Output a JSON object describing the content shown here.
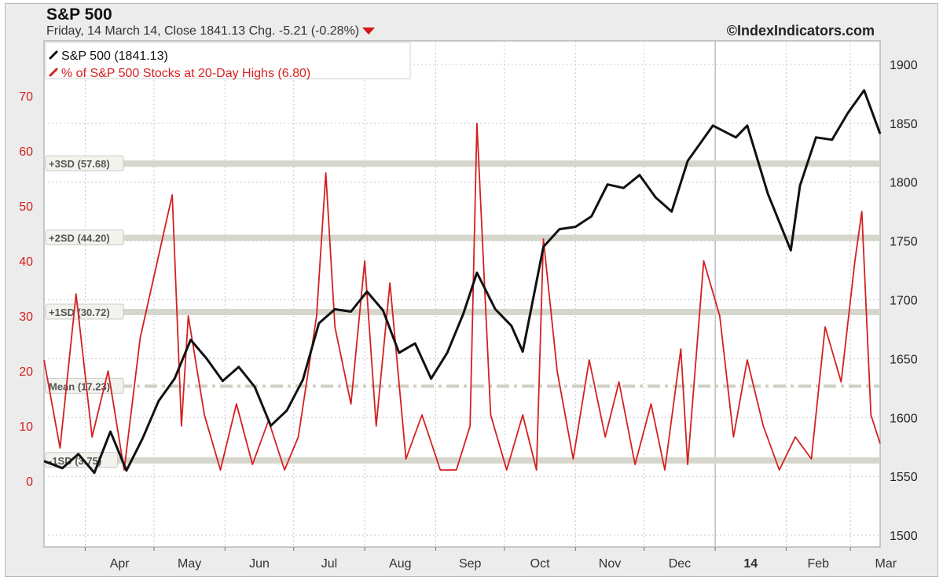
{
  "header": {
    "title": "S&P 500",
    "subtitle": "Friday, 14 March 14, Close 1841.13 Chg. -5.21 (-0.28%)",
    "brand": "©IndexIndicators.com",
    "down_arrow_icon": "down-triangle-icon"
  },
  "legend": {
    "items": [
      {
        "label": "S&P 500 (1841.13)",
        "color": "#111111",
        "icon": "line-swatch-icon"
      },
      {
        "label": "% of S&P 500 Stocks at 20-Day Highs (6.80)",
        "color": "#d42020",
        "icon": "line-swatch-icon"
      }
    ]
  },
  "chart_data": {
    "type": "line",
    "x_axis": {
      "tick_labels": [
        "Apr",
        "May",
        "Jun",
        "Jul",
        "Aug",
        "Sep",
        "Oct",
        "Nov",
        "Dec",
        "14",
        "Feb",
        "Mar"
      ],
      "range": [
        "2013-03-14",
        "2014-03-14"
      ]
    },
    "left_axis": {
      "ticks": [
        "0",
        "10",
        "20",
        "30",
        "40",
        "50",
        "60",
        "70"
      ],
      "range": [
        -12,
        80
      ],
      "color": "#d42020"
    },
    "right_axis": {
      "ticks": [
        "1500",
        "1550",
        "1600",
        "1650",
        "1700",
        "1750",
        "1800",
        "1850",
        "1900"
      ],
      "range": [
        1490,
        1920
      ],
      "color": "#222222"
    },
    "reference_lines": [
      {
        "label": "+3SD (57.68)",
        "value": 57.68,
        "style": "solid"
      },
      {
        "label": "+2SD (44.20)",
        "value": 44.2,
        "style": "solid"
      },
      {
        "label": "+1SD (30.72)",
        "value": 30.72,
        "style": "solid"
      },
      {
        "label": "Mean (17.23)",
        "value": 17.23,
        "style": "dashdot"
      },
      {
        "label": "-1SD (3.75)",
        "value": 3.75,
        "style": "solid"
      }
    ],
    "grid": true,
    "legend_position": "top-left",
    "series": [
      {
        "name": "S&P 500 (1841.13)",
        "axis": "right",
        "color": "#111111",
        "x": [
          "2013-03-14",
          "2013-03-22",
          "2013-03-29",
          "2013-04-05",
          "2013-04-12",
          "2013-04-19",
          "2013-04-26",
          "2013-05-03",
          "2013-05-10",
          "2013-05-17",
          "2013-05-24",
          "2013-05-31",
          "2013-06-07",
          "2013-06-14",
          "2013-06-21",
          "2013-06-28",
          "2013-07-05",
          "2013-07-12",
          "2013-07-19",
          "2013-07-26",
          "2013-08-02",
          "2013-08-09",
          "2013-08-16",
          "2013-08-23",
          "2013-08-30",
          "2013-09-06",
          "2013-09-13",
          "2013-09-19",
          "2013-09-27",
          "2013-10-04",
          "2013-10-09",
          "2013-10-18",
          "2013-10-25",
          "2013-11-01",
          "2013-11-08",
          "2013-11-15",
          "2013-11-22",
          "2013-11-29",
          "2013-12-06",
          "2013-12-13",
          "2013-12-20",
          "2013-12-31",
          "2014-01-10",
          "2014-01-15",
          "2014-01-24",
          "2014-02-03",
          "2014-02-07",
          "2014-02-14",
          "2014-02-21",
          "2014-02-28",
          "2014-03-07",
          "2014-03-14"
        ],
        "y": [
          1563,
          1557,
          1569,
          1553,
          1588,
          1555,
          1582,
          1614,
          1633,
          1666,
          1650,
          1631,
          1643,
          1626,
          1593,
          1606,
          1632,
          1680,
          1692,
          1690,
          1707,
          1691,
          1655,
          1663,
          1633,
          1655,
          1688,
          1723,
          1692,
          1678,
          1656,
          1745,
          1760,
          1762,
          1771,
          1798,
          1795,
          1806,
          1787,
          1775,
          1818,
          1848,
          1838,
          1848,
          1790,
          1742,
          1797,
          1838,
          1836,
          1859,
          1878,
          1841
        ]
      },
      {
        "name": "% of S&P 500 Stocks at 20-Day Highs (6.80)",
        "axis": "left",
        "color": "#d42020",
        "x": [
          "2013-03-14",
          "2013-03-21",
          "2013-03-28",
          "2013-04-04",
          "2013-04-11",
          "2013-04-18",
          "2013-04-25",
          "2013-05-02",
          "2013-05-09",
          "2013-05-13",
          "2013-05-16",
          "2013-05-23",
          "2013-05-30",
          "2013-06-06",
          "2013-06-13",
          "2013-06-20",
          "2013-06-27",
          "2013-07-03",
          "2013-07-11",
          "2013-07-15",
          "2013-07-19",
          "2013-07-26",
          "2013-08-01",
          "2013-08-06",
          "2013-08-12",
          "2013-08-19",
          "2013-08-26",
          "2013-09-03",
          "2013-09-10",
          "2013-09-16",
          "2013-09-19",
          "2013-09-25",
          "2013-10-02",
          "2013-10-09",
          "2013-10-15",
          "2013-10-18",
          "2013-10-24",
          "2013-10-31",
          "2013-11-07",
          "2013-11-14",
          "2013-11-20",
          "2013-11-27",
          "2013-12-04",
          "2013-12-10",
          "2013-12-17",
          "2013-12-20",
          "2013-12-27",
          "2014-01-03",
          "2014-01-09",
          "2014-01-15",
          "2014-01-22",
          "2014-01-29",
          "2014-02-05",
          "2014-02-12",
          "2014-02-18",
          "2014-02-25",
          "2014-03-03",
          "2014-03-06",
          "2014-03-10",
          "2014-03-14"
        ],
        "y": [
          22,
          6,
          34,
          8,
          20,
          2,
          26,
          39,
          52,
          10,
          30,
          12,
          2,
          14,
          3,
          11,
          2,
          8,
          30,
          56,
          28,
          14,
          40,
          10,
          36,
          4,
          12,
          2,
          2,
          10,
          65,
          12,
          2,
          12,
          2,
          44,
          20,
          4,
          22,
          8,
          18,
          3,
          14,
          2,
          24,
          3,
          40,
          30,
          8,
          22,
          10,
          2,
          8,
          4,
          28,
          18,
          40,
          49,
          12,
          6.8
        ]
      }
    ]
  }
}
